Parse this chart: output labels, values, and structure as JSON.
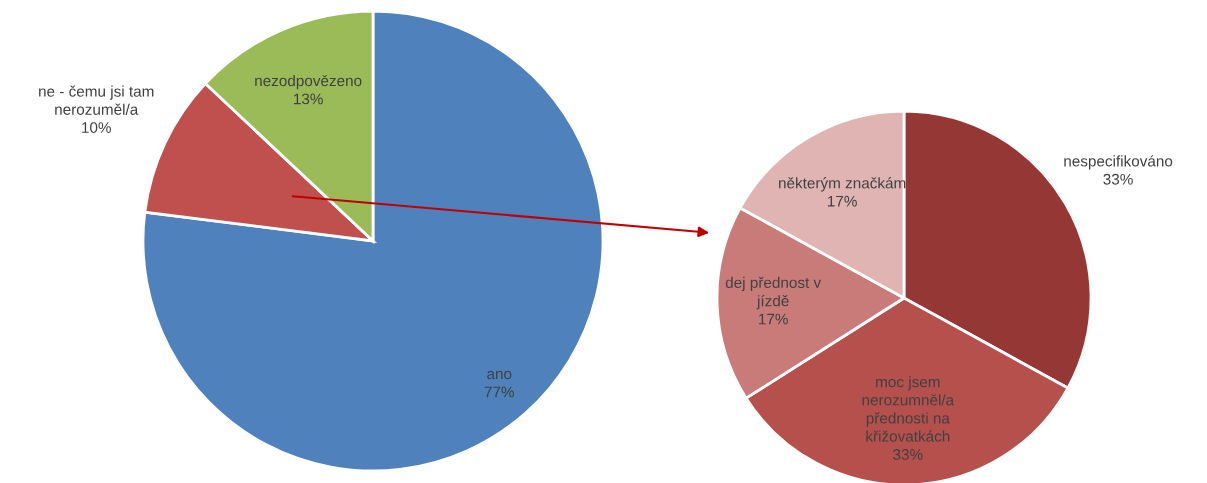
{
  "chart_data": [
    {
      "type": "pie",
      "categories": [
        "ano",
        "ne - čemu jsi tam\nnerozuměl/a",
        "nezodpovězeno"
      ],
      "values": [
        77,
        10,
        13
      ],
      "colors": [
        "#4f81bd",
        "#c0504d",
        "#9bbb59"
      ],
      "value_labels": [
        "77%",
        "10%",
        "13%"
      ]
    },
    {
      "type": "pie",
      "categories": [
        "nespecifikováno",
        "moc jsem\nnerozumněl/a\npřednosti na\nkřižovatkách",
        "dej přednost v\njízdě",
        "některým značkám"
      ],
      "values": [
        33,
        33,
        17,
        17
      ],
      "colors": [
        "#953735",
        "#b5504d",
        "#c97b79",
        "#dfb4b3"
      ],
      "value_labels": [
        "33%",
        "33%",
        "17%",
        "17%"
      ]
    }
  ]
}
